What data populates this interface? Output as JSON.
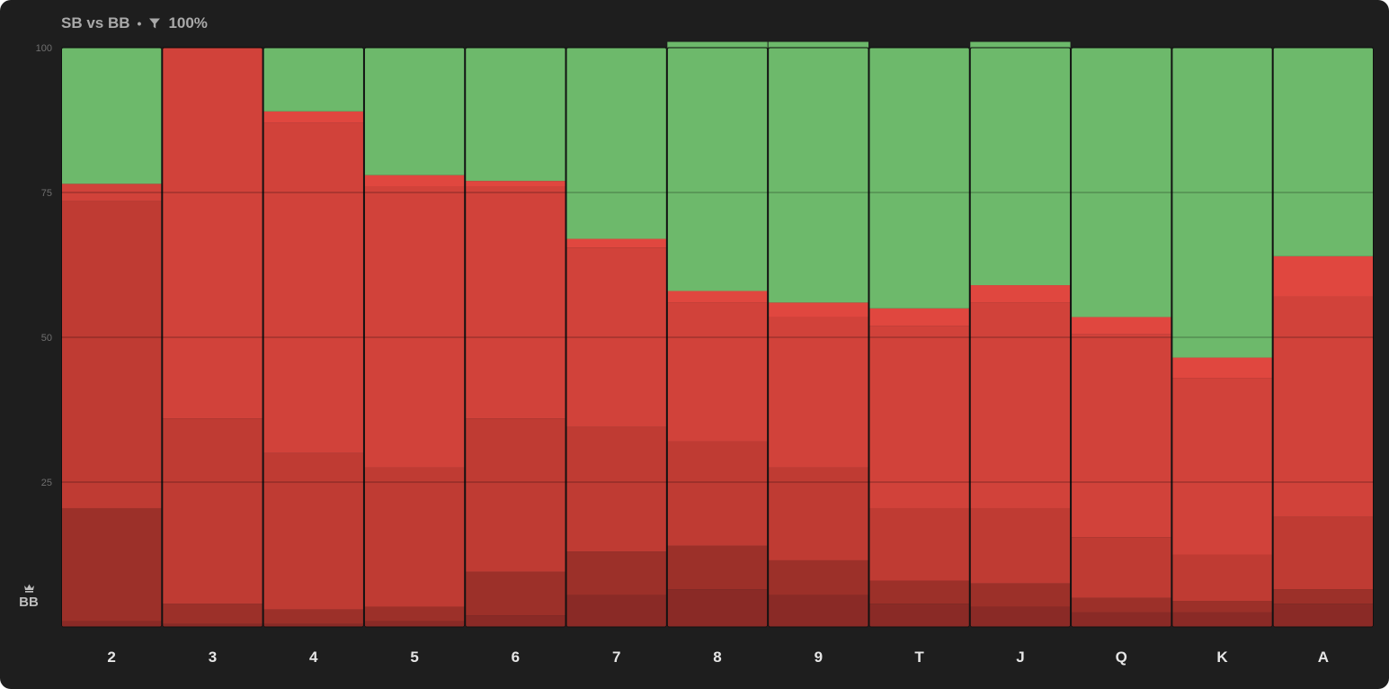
{
  "header": {
    "matchup": "SB vs BB",
    "separator": "•",
    "filter_value": "100%"
  },
  "side_label": {
    "player": "BB"
  },
  "colors": {
    "background": "#1e1e1e",
    "green": "#6db96b",
    "bright_red": "#e0473f",
    "red": "#d1423a",
    "mid_red": "#bf3b33",
    "dark_red": "#9c3029",
    "darkest_red": "#8a2a26",
    "grid": "#3a3a3a"
  },
  "chart_data": {
    "type": "bar",
    "stacked": true,
    "title": "SB vs BB",
    "xlabel": "",
    "ylabel": "",
    "ylim": [
      0,
      100
    ],
    "yticks": [
      25,
      50,
      75,
      100
    ],
    "categories": [
      "2",
      "3",
      "4",
      "5",
      "6",
      "7",
      "8",
      "9",
      "T",
      "J",
      "Q",
      "K",
      "A"
    ],
    "series": [
      {
        "color": "#8a2a26",
        "values": [
          1,
          0.5,
          0.5,
          1,
          2,
          5.5,
          6.5,
          5.5,
          4,
          3.5,
          2.5,
          2.5,
          4
        ]
      },
      {
        "color": "#9c3029",
        "values": [
          19.5,
          3.5,
          2.5,
          2.5,
          7.5,
          7.5,
          7.5,
          6,
          4,
          4,
          2.5,
          2,
          2.5
        ]
      },
      {
        "color": "#bf3b33",
        "values": [
          53,
          32,
          27,
          24,
          26.5,
          21.5,
          18,
          16,
          12.5,
          13,
          10.5,
          8,
          12.5
        ]
      },
      {
        "color": "#d1423a",
        "values": [
          3,
          64,
          57,
          48.5,
          40,
          31,
          24,
          26,
          31.5,
          35.5,
          35,
          30.5,
          38
        ]
      },
      {
        "color": "#e0473f",
        "values": [
          0,
          0,
          2,
          2,
          1,
          1.5,
          2,
          2.5,
          3,
          3,
          3,
          3.5,
          7
        ]
      },
      {
        "color": "#6db96b",
        "values": [
          23.5,
          0,
          11,
          22,
          23,
          33,
          43,
          45,
          45,
          42,
          46.5,
          53.5,
          36
        ]
      }
    ]
  }
}
